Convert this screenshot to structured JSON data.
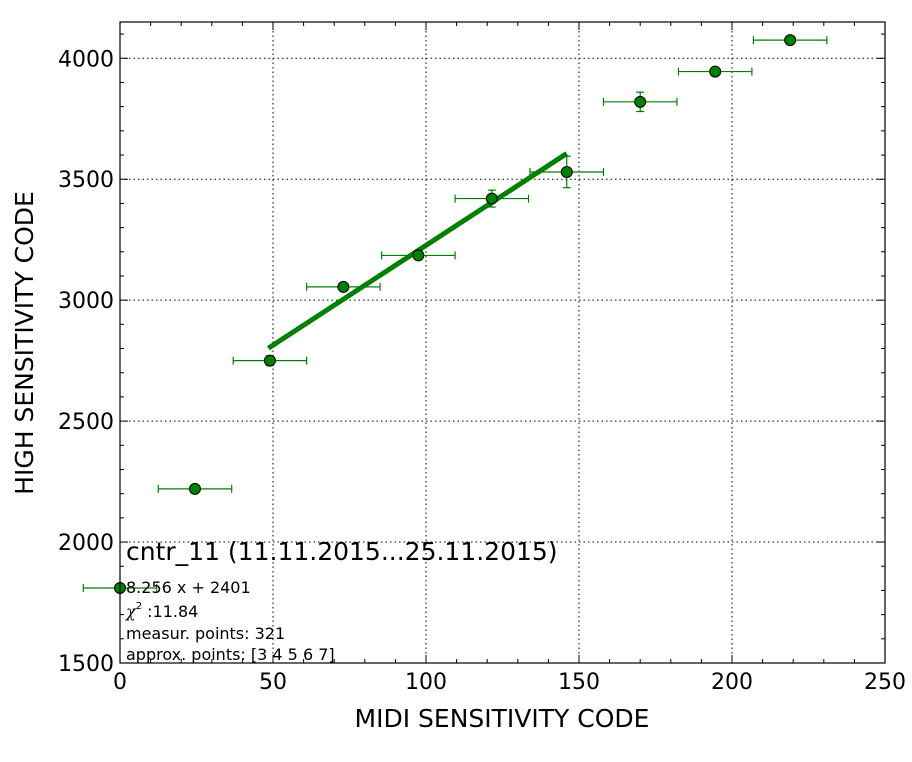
{
  "chart_data": {
    "type": "scatter",
    "xlabel": "MIDI SENSITIVITY CODE",
    "ylabel": "HIGH SENSITIVITY CODE",
    "xlim": [
      0,
      250
    ],
    "ylim": [
      1500,
      4150
    ],
    "x_ticks": [
      "0",
      "50",
      "100",
      "150",
      "200",
      "250"
    ],
    "y_ticks": [
      "1500",
      "2000",
      "2500",
      "3000",
      "3500",
      "4000"
    ],
    "grid": true,
    "marker_color": "#008000",
    "fit_color": "#008000",
    "points": [
      {
        "x": 0,
        "y": 1810,
        "xerr": 12,
        "yerr": 0
      },
      {
        "x": 24.5,
        "y": 2220,
        "xerr": 12,
        "yerr": 0
      },
      {
        "x": 49,
        "y": 2750,
        "xerr": 12,
        "yerr": 20
      },
      {
        "x": 73,
        "y": 3055,
        "xerr": 12,
        "yerr": 0
      },
      {
        "x": 97.5,
        "y": 3185,
        "xerr": 12,
        "yerr": 10
      },
      {
        "x": 121.5,
        "y": 3420,
        "xerr": 12,
        "yerr": 35
      },
      {
        "x": 146,
        "y": 3530,
        "xerr": 12,
        "yerr": 65
      },
      {
        "x": 170,
        "y": 3820,
        "xerr": 12,
        "yerr": 40
      },
      {
        "x": 194.5,
        "y": 3945,
        "xerr": 12,
        "yerr": 0
      },
      {
        "x": 219,
        "y": 4075,
        "xerr": 12,
        "yerr": 0
      }
    ],
    "fit": {
      "slope": 8.256,
      "intercept": 2401,
      "x_range": [
        48.5,
        146
      ]
    },
    "annotations": {
      "title": "cntr_11 (11.11.2015...25.11.2015)",
      "equation": "8.256 x + 2401",
      "chi_symbol": "χ",
      "chi_sup": "2",
      "chi_value": " :11.84",
      "measur_points": "measur. points: 321",
      "approx_points": "approx. points: [3 4 5 6 7]"
    }
  }
}
